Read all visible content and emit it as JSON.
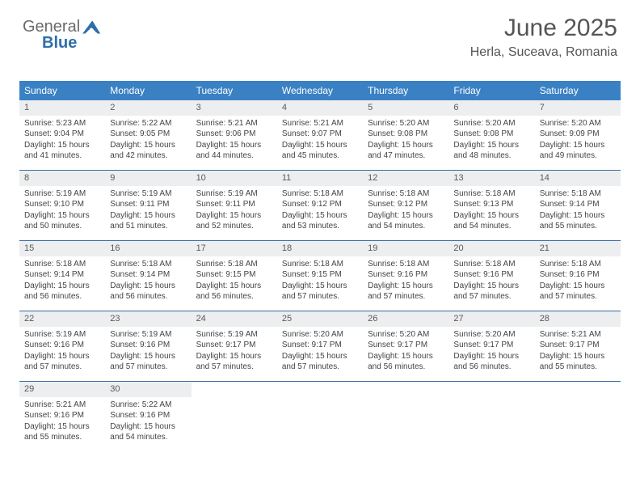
{
  "brand": {
    "part1": "General",
    "part2": "Blue"
  },
  "title": "June 2025",
  "location": "Herla, Suceava, Romania",
  "colors": {
    "header_bg": "#3a81c4",
    "header_text": "#ffffff",
    "divider": "#3a6da3",
    "daynum_bg": "#eceeef",
    "text": "#444444",
    "title_color": "#555555"
  },
  "day_headers": [
    "Sunday",
    "Monday",
    "Tuesday",
    "Wednesday",
    "Thursday",
    "Friday",
    "Saturday"
  ],
  "days": [
    {
      "n": "1",
      "sr": "5:23 AM",
      "ss": "9:04 PM",
      "dh": "15",
      "dm": "41"
    },
    {
      "n": "2",
      "sr": "5:22 AM",
      "ss": "9:05 PM",
      "dh": "15",
      "dm": "42"
    },
    {
      "n": "3",
      "sr": "5:21 AM",
      "ss": "9:06 PM",
      "dh": "15",
      "dm": "44"
    },
    {
      "n": "4",
      "sr": "5:21 AM",
      "ss": "9:07 PM",
      "dh": "15",
      "dm": "45"
    },
    {
      "n": "5",
      "sr": "5:20 AM",
      "ss": "9:08 PM",
      "dh": "15",
      "dm": "47"
    },
    {
      "n": "6",
      "sr": "5:20 AM",
      "ss": "9:08 PM",
      "dh": "15",
      "dm": "48"
    },
    {
      "n": "7",
      "sr": "5:20 AM",
      "ss": "9:09 PM",
      "dh": "15",
      "dm": "49"
    },
    {
      "n": "8",
      "sr": "5:19 AM",
      "ss": "9:10 PM",
      "dh": "15",
      "dm": "50"
    },
    {
      "n": "9",
      "sr": "5:19 AM",
      "ss": "9:11 PM",
      "dh": "15",
      "dm": "51"
    },
    {
      "n": "10",
      "sr": "5:19 AM",
      "ss": "9:11 PM",
      "dh": "15",
      "dm": "52"
    },
    {
      "n": "11",
      "sr": "5:18 AM",
      "ss": "9:12 PM",
      "dh": "15",
      "dm": "53"
    },
    {
      "n": "12",
      "sr": "5:18 AM",
      "ss": "9:12 PM",
      "dh": "15",
      "dm": "54"
    },
    {
      "n": "13",
      "sr": "5:18 AM",
      "ss": "9:13 PM",
      "dh": "15",
      "dm": "54"
    },
    {
      "n": "14",
      "sr": "5:18 AM",
      "ss": "9:14 PM",
      "dh": "15",
      "dm": "55"
    },
    {
      "n": "15",
      "sr": "5:18 AM",
      "ss": "9:14 PM",
      "dh": "15",
      "dm": "56"
    },
    {
      "n": "16",
      "sr": "5:18 AM",
      "ss": "9:14 PM",
      "dh": "15",
      "dm": "56"
    },
    {
      "n": "17",
      "sr": "5:18 AM",
      "ss": "9:15 PM",
      "dh": "15",
      "dm": "56"
    },
    {
      "n": "18",
      "sr": "5:18 AM",
      "ss": "9:15 PM",
      "dh": "15",
      "dm": "57"
    },
    {
      "n": "19",
      "sr": "5:18 AM",
      "ss": "9:16 PM",
      "dh": "15",
      "dm": "57"
    },
    {
      "n": "20",
      "sr": "5:18 AM",
      "ss": "9:16 PM",
      "dh": "15",
      "dm": "57"
    },
    {
      "n": "21",
      "sr": "5:18 AM",
      "ss": "9:16 PM",
      "dh": "15",
      "dm": "57"
    },
    {
      "n": "22",
      "sr": "5:19 AM",
      "ss": "9:16 PM",
      "dh": "15",
      "dm": "57"
    },
    {
      "n": "23",
      "sr": "5:19 AM",
      "ss": "9:16 PM",
      "dh": "15",
      "dm": "57"
    },
    {
      "n": "24",
      "sr": "5:19 AM",
      "ss": "9:17 PM",
      "dh": "15",
      "dm": "57"
    },
    {
      "n": "25",
      "sr": "5:20 AM",
      "ss": "9:17 PM",
      "dh": "15",
      "dm": "57"
    },
    {
      "n": "26",
      "sr": "5:20 AM",
      "ss": "9:17 PM",
      "dh": "15",
      "dm": "56"
    },
    {
      "n": "27",
      "sr": "5:20 AM",
      "ss": "9:17 PM",
      "dh": "15",
      "dm": "56"
    },
    {
      "n": "28",
      "sr": "5:21 AM",
      "ss": "9:17 PM",
      "dh": "15",
      "dm": "55"
    },
    {
      "n": "29",
      "sr": "5:21 AM",
      "ss": "9:16 PM",
      "dh": "15",
      "dm": "55"
    },
    {
      "n": "30",
      "sr": "5:22 AM",
      "ss": "9:16 PM",
      "dh": "15",
      "dm": "54"
    }
  ],
  "labels": {
    "sunrise": "Sunrise:",
    "sunset": "Sunset:",
    "daylight_prefix": "Daylight:",
    "hours_word": "hours",
    "and_word": "and",
    "minutes_word": "minutes."
  },
  "grid": {
    "cols": 7,
    "total_cells": 35
  }
}
